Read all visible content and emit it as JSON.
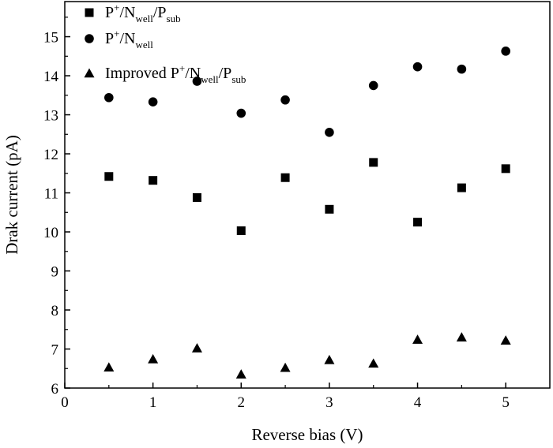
{
  "chart_data": {
    "type": "scatter",
    "xlabel": "Reverse bias (V)",
    "ylabel": "Drak current (pA)",
    "xlim": [
      0,
      5.5
    ],
    "ylim": [
      6,
      15.9
    ],
    "x_ticks": [
      "0",
      "1",
      "2",
      "3",
      "4",
      "5"
    ],
    "y_ticks": [
      "6",
      "7",
      "8",
      "9",
      "10",
      "11",
      "12",
      "13",
      "14",
      "15"
    ],
    "grid": false,
    "legend_position": "top-left",
    "x": [
      0.5,
      1.0,
      1.5,
      2.0,
      2.5,
      3.0,
      3.5,
      4.0,
      4.5,
      5.0
    ],
    "series": [
      {
        "name_parts": [
          {
            "t": "P",
            "s": "n"
          },
          {
            "t": "+",
            "s": "sup"
          },
          {
            "t": "/N",
            "s": "n"
          },
          {
            "t": "well",
            "s": "sub"
          },
          {
            "t": "/P",
            "s": "n"
          },
          {
            "t": "sub",
            "s": "sub"
          }
        ],
        "marker": "square",
        "values": [
          11.42,
          11.32,
          10.88,
          10.03,
          11.39,
          10.58,
          11.78,
          10.25,
          11.13,
          11.62
        ]
      },
      {
        "name_parts": [
          {
            "t": "P",
            "s": "n"
          },
          {
            "t": "+",
            "s": "sup"
          },
          {
            "t": "/N",
            "s": "n"
          },
          {
            "t": "well",
            "s": "sub"
          }
        ],
        "marker": "circle",
        "values": [
          13.44,
          13.33,
          13.86,
          13.04,
          13.38,
          12.55,
          13.75,
          14.23,
          14.17,
          14.63
        ]
      },
      {
        "name_parts": [
          {
            "t": "Improved P",
            "s": "n"
          },
          {
            "t": "+",
            "s": "sup"
          },
          {
            "t": "/N",
            "s": "n"
          },
          {
            "t": "well",
            "s": "sub"
          },
          {
            "t": "/P",
            "s": "n"
          },
          {
            "t": "sub",
            "s": "sub"
          }
        ],
        "marker": "triangle",
        "values": [
          6.53,
          6.74,
          7.02,
          6.35,
          6.52,
          6.72,
          6.63,
          7.24,
          7.3,
          7.22
        ]
      }
    ],
    "marker_color": "#000000"
  }
}
